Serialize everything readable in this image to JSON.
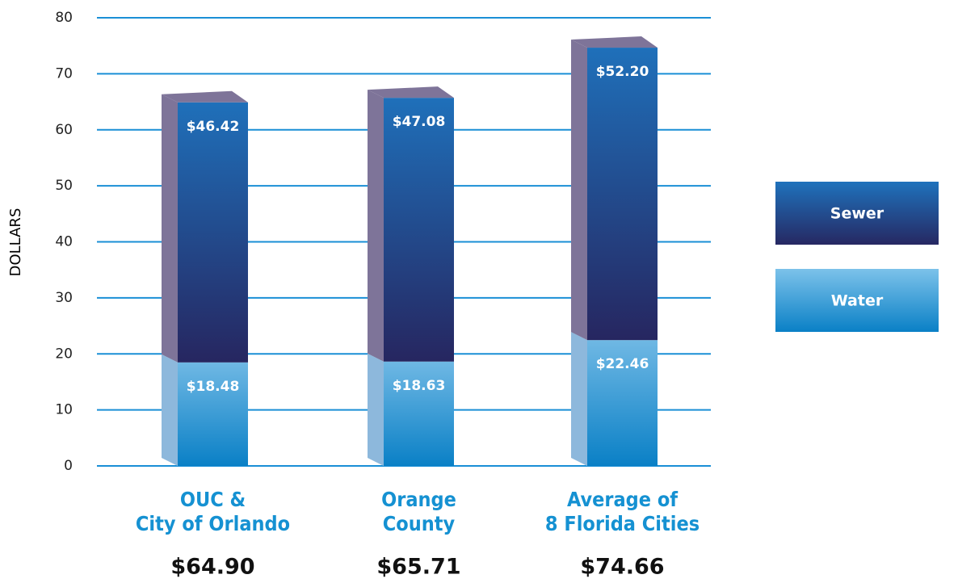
{
  "chart_data": {
    "type": "stacked_bar",
    "y_label": "DOLLARS",
    "categories": [
      "OUC &\nCity of Orlando",
      "Orange\nCounty",
      "Average of\n8 Florida Cities"
    ],
    "series": [
      {
        "name": "Water",
        "color": "#0a80c6",
        "values": [
          18.48,
          18.63,
          22.46
        ],
        "value_labels": [
          "$18.48",
          "$18.63",
          "$22.46"
        ]
      },
      {
        "name": "Sewer",
        "color": "#1f5da8",
        "values": [
          46.42,
          47.08,
          52.2
        ],
        "value_labels": [
          "$46.42",
          "$47.08",
          "$52.20"
        ]
      }
    ],
    "totals": [
      64.9,
      65.71,
      74.66
    ],
    "total_labels": [
      "$64.90",
      "$65.71",
      "$74.66"
    ],
    "ylim": [
      0,
      80
    ],
    "yticks": [
      0,
      10,
      20,
      30,
      40,
      50,
      60,
      70,
      80
    ],
    "grid": true,
    "legend": "right"
  }
}
